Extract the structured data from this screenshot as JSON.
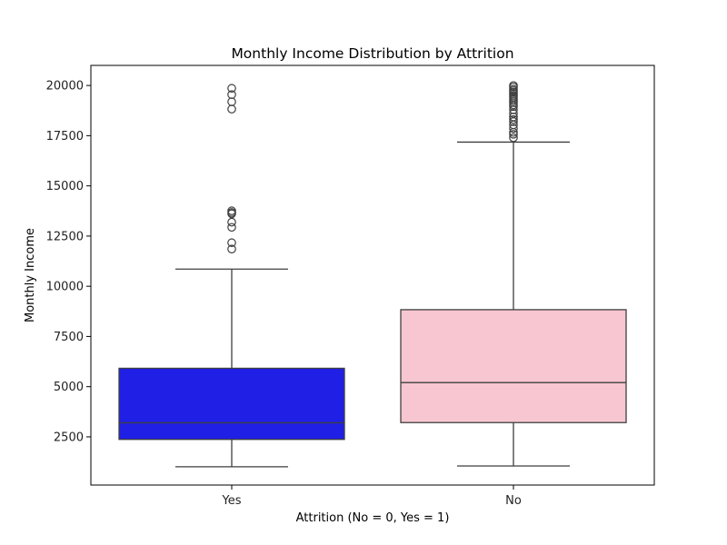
{
  "chart_data": {
    "type": "box",
    "title": "Monthly Income Distribution by Attrition",
    "xlabel": "Attrition (No = 0, Yes = 1)",
    "ylabel": "Monthly Income",
    "ylim": [
      100,
      21000
    ],
    "yticks": [
      2500,
      5000,
      7500,
      10000,
      12500,
      15000,
      17500,
      20000
    ],
    "grid": false,
    "categories": [
      "Yes",
      "No"
    ],
    "boxes": [
      {
        "category": "Yes",
        "color": "#1f1fe6",
        "min": 1009,
        "q1": 2373,
        "median": 3202,
        "q3": 5916,
        "max": 10854,
        "outliers": [
          11853,
          12169,
          12936,
          13194,
          13610,
          13675,
          13758,
          18824,
          19189,
          19545,
          19859
        ]
      },
      {
        "category": "No",
        "color": "#f7c6d0",
        "min": 1051,
        "q1": 3211,
        "median": 5204,
        "q3": 8834,
        "max": 17181,
        "outliers": [
          17399,
          17567,
          17665,
          17861,
          18041,
          18200,
          18303,
          18430,
          18606,
          18789,
          18947,
          19033,
          19141,
          19232,
          19328,
          19419,
          19502,
          19586,
          19665,
          19740,
          19816,
          19926,
          19999
        ]
      }
    ]
  }
}
